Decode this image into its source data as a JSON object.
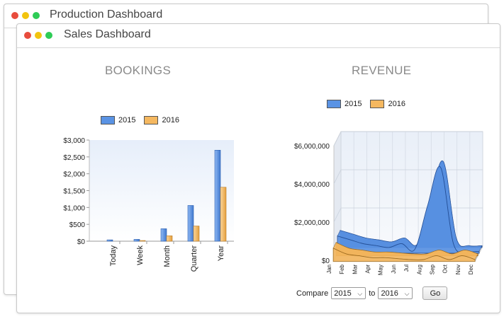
{
  "windows": {
    "back": {
      "title": "Production Dashboard"
    },
    "front": {
      "title": "Sales Dashboard"
    }
  },
  "colors": {
    "series_2015": "#5a93e4",
    "series_2016": "#f5b860",
    "close": "#e84c3d",
    "minimize": "#f2c40f",
    "maximize": "#2ecc56"
  },
  "bookings": {
    "title": "BOOKINGS",
    "legend": [
      "2015",
      "2016"
    ]
  },
  "revenue": {
    "title": "REVENUE",
    "legend": [
      "2015",
      "2016"
    ]
  },
  "chart_data": [
    {
      "type": "bar",
      "title": "BOOKINGS",
      "categories": [
        "Today",
        "Week",
        "Month",
        "Quarter",
        "Year"
      ],
      "series": [
        {
          "name": "2015",
          "values": [
            40,
            55,
            370,
            1060,
            2700
          ]
        },
        {
          "name": "2016",
          "values": [
            0,
            20,
            160,
            450,
            1600
          ]
        }
      ],
      "yticks": [
        "$0",
        "$500",
        "$1,000",
        "$1,500",
        "$2,000",
        "$2,500",
        "$3,000"
      ],
      "ylim": [
        0,
        3000
      ]
    },
    {
      "type": "area",
      "title": "REVENUE",
      "categories": [
        "Jan",
        "Feb",
        "Mar",
        "Apr",
        "May",
        "Jun",
        "Jul",
        "Aug",
        "Sep",
        "Oct",
        "Nov",
        "Dec"
      ],
      "series": [
        {
          "name": "2015",
          "values": [
            900000,
            700000,
            500000,
            400000,
            300000,
            500000,
            200000,
            2500000,
            4500000,
            500000,
            100000,
            100000
          ]
        },
        {
          "name": "2016",
          "values": [
            700000,
            400000,
            300000,
            200000,
            200000,
            150000,
            100000,
            100000,
            300000,
            100000,
            300000,
            100000
          ]
        }
      ],
      "yticks": [
        "$0",
        "$2,000,000",
        "$4,000,000",
        "$6,000,000"
      ],
      "ylim": [
        0,
        6000000
      ]
    }
  ],
  "compare": {
    "label": "Compare",
    "from_value": "2015",
    "to_label": "to",
    "to_value": "2016",
    "go_label": "Go"
  }
}
